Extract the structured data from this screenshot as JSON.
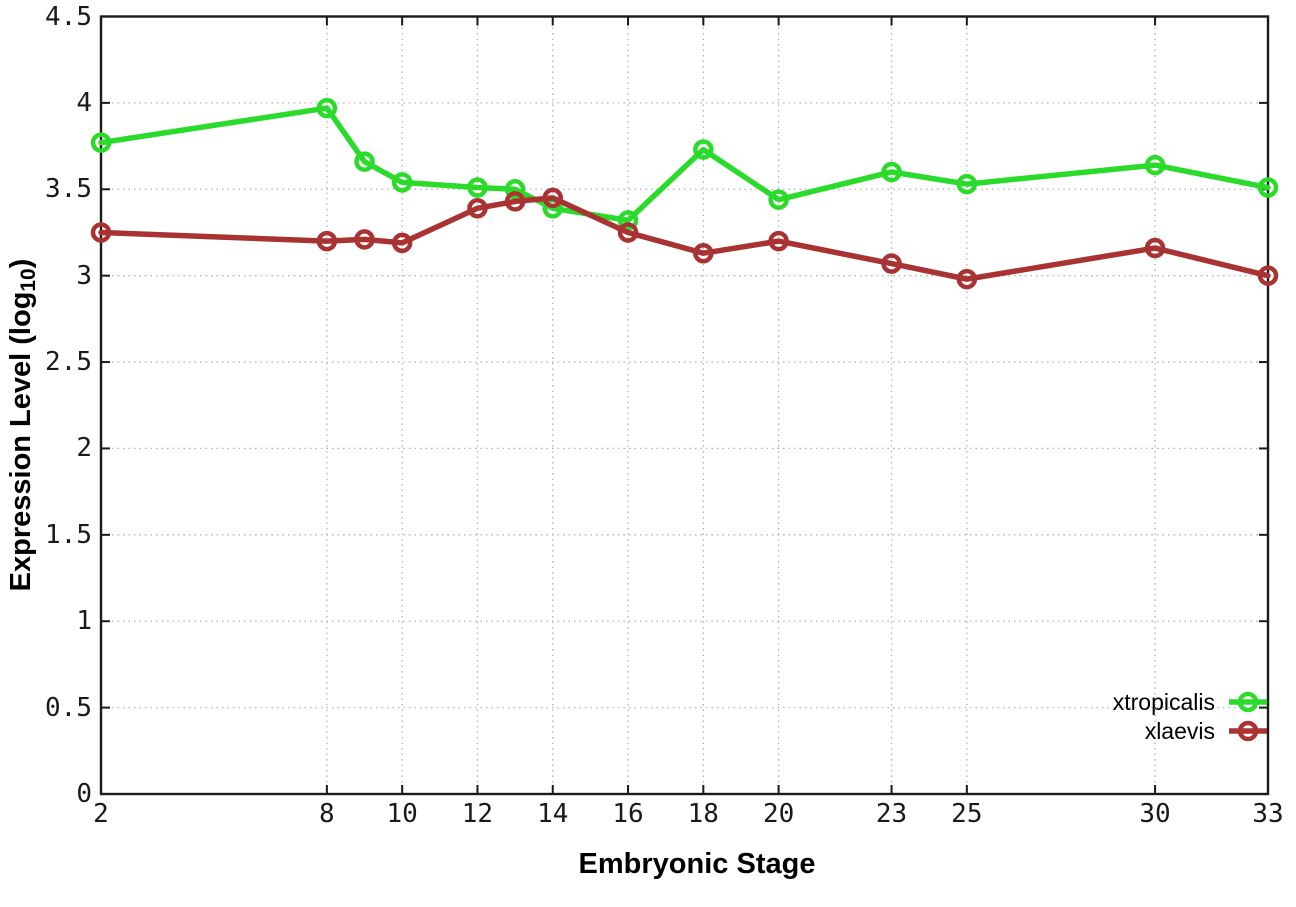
{
  "chart_data": {
    "type": "line",
    "title": "",
    "xlabel": "Embryonic Stage",
    "ylabel": {
      "prefix": "Expression Level (log",
      "subscript": "10",
      "suffix": ")"
    },
    "x": [
      2,
      8,
      9,
      10,
      12,
      13,
      14,
      16,
      18,
      20,
      23,
      25,
      30,
      33
    ],
    "series": [
      {
        "name": "xtropicalis",
        "color": "#2bdb2b",
        "marker": "open-circle",
        "values": [
          3.77,
          3.97,
          3.66,
          3.54,
          3.51,
          3.5,
          3.39,
          3.32,
          3.73,
          3.44,
          3.6,
          3.53,
          3.64,
          3.51
        ]
      },
      {
        "name": "xlaevis",
        "color": "#a93333",
        "marker": "open-circle",
        "values": [
          3.25,
          3.2,
          3.21,
          3.19,
          3.39,
          3.43,
          3.45,
          3.25,
          3.13,
          3.2,
          3.07,
          2.98,
          3.16,
          3.0
        ]
      }
    ],
    "xlim": [
      2,
      33
    ],
    "ylim": [
      0,
      4.5
    ],
    "xticks": {
      "values": [
        2,
        8,
        10,
        12,
        14,
        16,
        18,
        20,
        23,
        25,
        30,
        33
      ],
      "labels": [
        "2",
        "8",
        "10",
        "12",
        "14",
        "16",
        "18",
        "20",
        "23",
        "25",
        "30",
        "33"
      ]
    },
    "yticks": {
      "values": [
        0,
        0.5,
        1,
        1.5,
        2,
        2.5,
        3,
        3.5,
        4,
        4.5
      ],
      "labels": [
        "0",
        "0.5",
        "1",
        "1.5",
        "2",
        "2.5",
        "3",
        "3.5",
        "4",
        "4.5"
      ]
    },
    "grid": true,
    "grid_style": "dotted",
    "grid_color": "#b3b3b3",
    "border_color": "#1a1a1a",
    "legend_position": "bottom-right"
  }
}
